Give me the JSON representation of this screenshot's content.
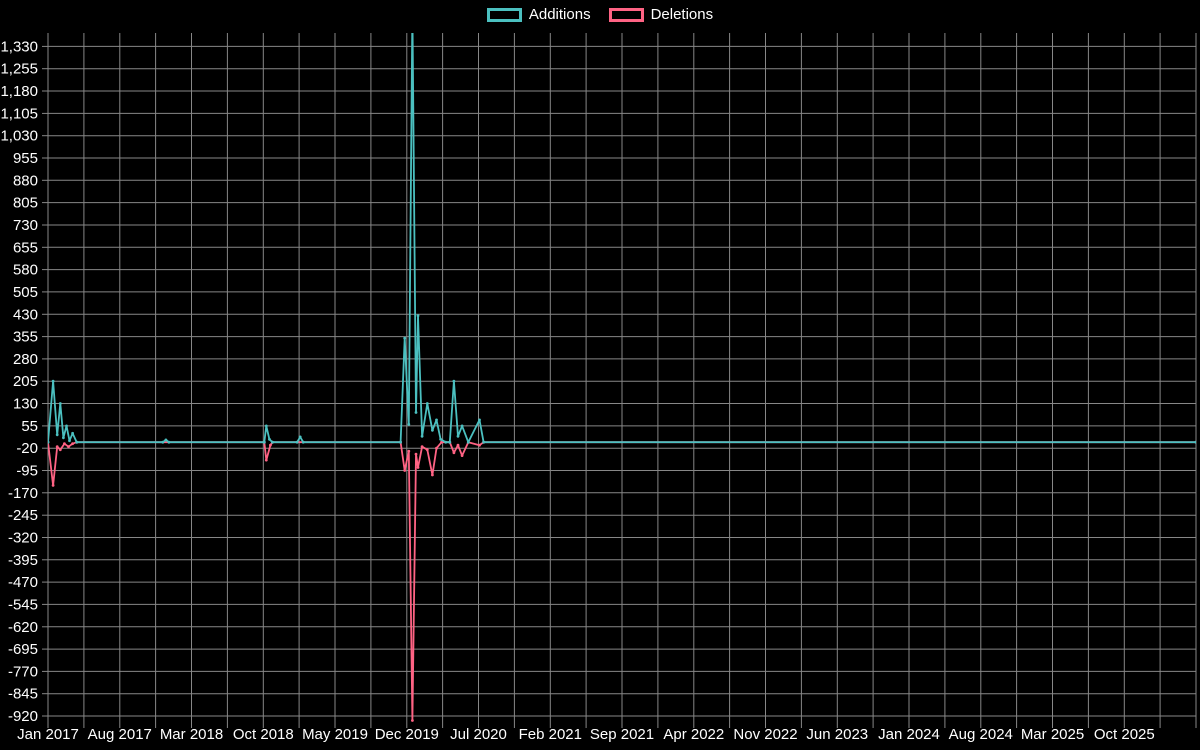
{
  "legend": {
    "items": [
      {
        "label": "Additions",
        "color": "#4bc0c0"
      },
      {
        "label": "Deletions",
        "color": "#ff6384"
      }
    ]
  },
  "chart_data": {
    "type": "line",
    "title": "",
    "xlabel": "",
    "ylabel": "",
    "background": "#000000",
    "grid": true,
    "grid_color": "#878787",
    "text_color": "#ffffff",
    "legend_position": "top-center",
    "x_unit": "months since Jan 2017",
    "xlim": [
      0,
      112
    ],
    "ylim": [
      -940,
      1375
    ],
    "y_ticks": [
      1330,
      1255,
      1180,
      1105,
      1030,
      955,
      880,
      805,
      730,
      655,
      580,
      505,
      430,
      355,
      280,
      205,
      130,
      55,
      -20,
      -95,
      -170,
      -245,
      -320,
      -395,
      -470,
      -545,
      -620,
      -695,
      -770,
      -845,
      -920
    ],
    "x_tick_months": [
      0,
      7,
      14,
      21,
      28,
      35,
      42,
      49,
      56,
      63,
      70,
      77,
      84,
      91,
      98,
      105
    ],
    "x_tick_labels": [
      "Jan 2017",
      "Aug 2017",
      "Mar 2018",
      "Oct 2018",
      "May 2019",
      "Dec 2019",
      "Jul 2020",
      "Feb 2021",
      "Sep 2021",
      "Apr 2022",
      "Nov 2022",
      "Jun 2023",
      "Jan 2024",
      "Aug 2024",
      "Mar 2025",
      "Oct 2025"
    ],
    "series": [
      {
        "name": "Additions",
        "color": "#4bc0c0",
        "points": [
          [
            0,
            0
          ],
          [
            0.5,
            205
          ],
          [
            0.9,
            25
          ],
          [
            1.2,
            130
          ],
          [
            1.5,
            15
          ],
          [
            1.8,
            55
          ],
          [
            2.1,
            5
          ],
          [
            2.4,
            30
          ],
          [
            2.8,
            0
          ],
          [
            11.2,
            0
          ],
          [
            11.5,
            8
          ],
          [
            11.8,
            0
          ],
          [
            21.1,
            0
          ],
          [
            21.3,
            55
          ],
          [
            21.6,
            10
          ],
          [
            21.9,
            0
          ],
          [
            24.3,
            0
          ],
          [
            24.6,
            18
          ],
          [
            24.9,
            0
          ],
          [
            34.4,
            0
          ],
          [
            34.8,
            350
          ],
          [
            35.2,
            60
          ],
          [
            35.55,
            1450
          ],
          [
            35.9,
            100
          ],
          [
            36.1,
            425
          ],
          [
            36.5,
            20
          ],
          [
            37.0,
            130
          ],
          [
            37.5,
            40
          ],
          [
            37.9,
            75
          ],
          [
            38.3,
            10
          ],
          [
            38.8,
            0
          ],
          [
            39.2,
            0
          ],
          [
            39.6,
            205
          ],
          [
            40.0,
            20
          ],
          [
            40.4,
            55
          ],
          [
            41.0,
            0
          ],
          [
            42.1,
            75
          ],
          [
            42.5,
            0
          ],
          [
            112,
            0
          ]
        ]
      },
      {
        "name": "Deletions",
        "color": "#ff6384",
        "points": [
          [
            0,
            0
          ],
          [
            0.5,
            -145
          ],
          [
            0.9,
            -15
          ],
          [
            1.2,
            -25
          ],
          [
            1.6,
            -5
          ],
          [
            2.0,
            -15
          ],
          [
            2.4,
            -5
          ],
          [
            2.8,
            0
          ],
          [
            21.1,
            0
          ],
          [
            21.3,
            -60
          ],
          [
            21.7,
            -10
          ],
          [
            21.9,
            0
          ],
          [
            34.4,
            0
          ],
          [
            34.8,
            -95
          ],
          [
            35.2,
            -30
          ],
          [
            35.55,
            -935
          ],
          [
            35.9,
            -40
          ],
          [
            36.1,
            -85
          ],
          [
            36.5,
            -15
          ],
          [
            37.0,
            -25
          ],
          [
            37.5,
            -110
          ],
          [
            37.9,
            -20
          ],
          [
            38.4,
            0
          ],
          [
            39.2,
            0
          ],
          [
            39.6,
            -35
          ],
          [
            40.0,
            -10
          ],
          [
            40.4,
            -45
          ],
          [
            41.0,
            0
          ],
          [
            42.1,
            -10
          ],
          [
            42.5,
            0
          ],
          [
            112,
            0
          ]
        ]
      }
    ]
  }
}
